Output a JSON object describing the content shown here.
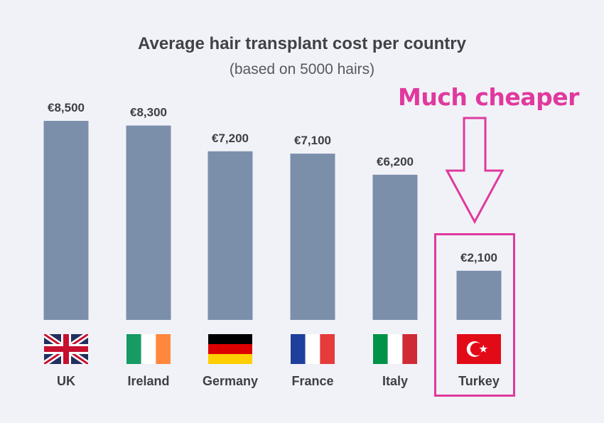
{
  "chart_data": {
    "type": "bar",
    "title": "Average hair transplant cost per country",
    "subtitle": "(based on 5000 hairs)",
    "categories": [
      "UK",
      "Ireland",
      "Germany",
      "France",
      "Italy",
      "Turkey"
    ],
    "values": [
      8500,
      8300,
      7200,
      7100,
      6200,
      2100
    ],
    "value_labels": [
      "€8,500",
      "€8,300",
      "€7,200",
      "€7,100",
      "€6,200",
      "€2,100"
    ],
    "flags": [
      "uk-flag-icon",
      "ireland-flag-icon",
      "germany-flag-icon",
      "france-flag-icon",
      "italy-flag-icon",
      "turkey-flag-icon"
    ],
    "ylim": [
      0,
      8500
    ],
    "bar_color": "#7b8fab",
    "grid": false,
    "annotation": {
      "text": "Much cheaper",
      "target": "Turkey",
      "color": "#e0399e"
    }
  }
}
